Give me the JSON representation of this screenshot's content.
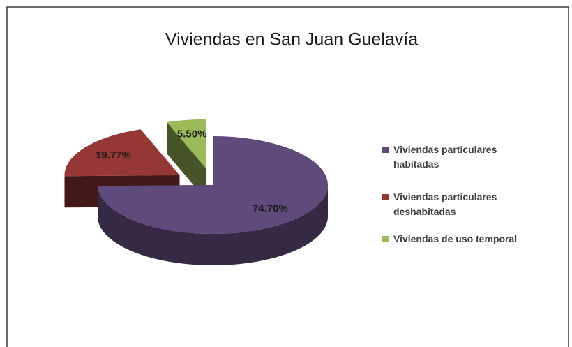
{
  "chart_data": {
    "type": "pie",
    "title": "Viviendas en San Juan Guelavía",
    "categories": [
      "Viviendas particulares habitadas",
      "Viviendas particulares deshabitadas",
      "Viviendas de uso temporal"
    ],
    "values": [
      74.7,
      19.77,
      5.5
    ],
    "value_labels": [
      "74.70%",
      "19.77%",
      "5.50%"
    ],
    "colors": [
      "#604a7b",
      "#953735",
      "#9bbb59"
    ],
    "legend": "right"
  }
}
